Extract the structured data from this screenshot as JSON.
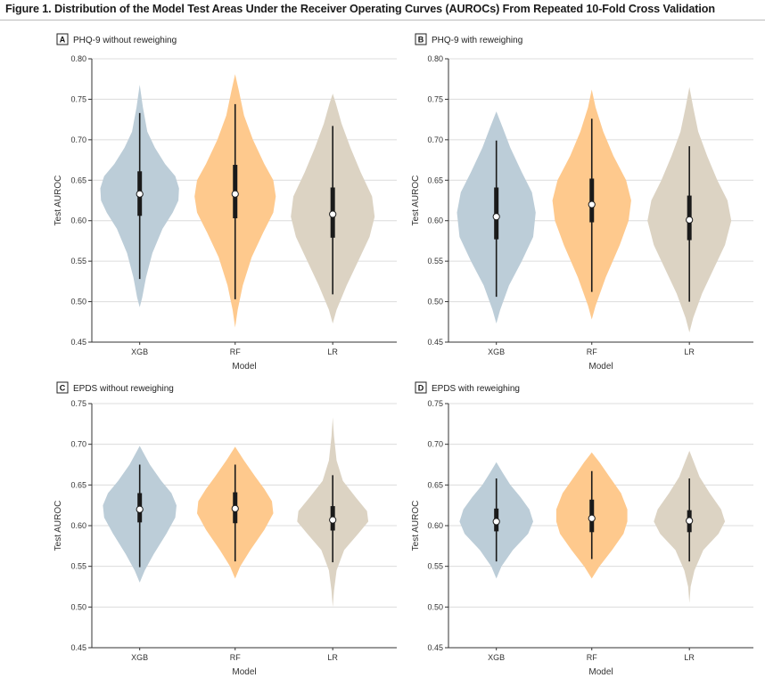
{
  "figure": {
    "title": "Figure 1. Distribution of the Model Test Areas Under the Receiver Operating Curves (AUROCs) From Repeated 10-Fold Cross Validation"
  },
  "colors": {
    "XGB": "#bccdd8",
    "RF": "#fec98d",
    "LR": "#dcd3c3"
  },
  "chart_data": [
    {
      "type": "violin",
      "letter": "A",
      "title": "PHQ-9 without reweighing",
      "xlabel": "Model",
      "ylabel": "Test AUROC",
      "ylim": [
        0.45,
        0.8
      ],
      "yticks": [
        "0.45",
        "0.50",
        "0.55",
        "0.60",
        "0.65",
        "0.70",
        "0.75",
        "0.80"
      ],
      "categories": [
        "XGB",
        "RF",
        "LR"
      ],
      "series": [
        {
          "name": "XGB",
          "median": 0.633,
          "q1": 0.606,
          "q3": 0.661,
          "whisker_low": 0.528,
          "whisker_high": 0.733,
          "density": [
            [
              0.493,
              0.0
            ],
            [
              0.505,
              0.02
            ],
            [
              0.53,
              0.05
            ],
            [
              0.56,
              0.1
            ],
            [
              0.59,
              0.18
            ],
            [
              0.61,
              0.26
            ],
            [
              0.625,
              0.305
            ],
            [
              0.64,
              0.31
            ],
            [
              0.655,
              0.28
            ],
            [
              0.67,
              0.2
            ],
            [
              0.69,
              0.12
            ],
            [
              0.71,
              0.06
            ],
            [
              0.74,
              0.025
            ],
            [
              0.768,
              0.0
            ]
          ]
        },
        {
          "name": "RF",
          "median": 0.633,
          "q1": 0.603,
          "q3": 0.669,
          "whisker_low": 0.503,
          "whisker_high": 0.744,
          "density": [
            [
              0.468,
              0.0
            ],
            [
              0.49,
              0.02
            ],
            [
              0.52,
              0.06
            ],
            [
              0.555,
              0.13
            ],
            [
              0.585,
              0.22
            ],
            [
              0.61,
              0.3
            ],
            [
              0.63,
              0.32
            ],
            [
              0.65,
              0.3
            ],
            [
              0.67,
              0.23
            ],
            [
              0.7,
              0.14
            ],
            [
              0.73,
              0.07
            ],
            [
              0.76,
              0.03
            ],
            [
              0.781,
              0.0
            ]
          ]
        },
        {
          "name": "LR",
          "median": 0.608,
          "q1": 0.579,
          "q3": 0.641,
          "whisker_low": 0.509,
          "whisker_high": 0.717,
          "density": [
            [
              0.473,
              0.0
            ],
            [
              0.49,
              0.03
            ],
            [
              0.52,
              0.11
            ],
            [
              0.55,
              0.2
            ],
            [
              0.58,
              0.29
            ],
            [
              0.605,
              0.33
            ],
            [
              0.63,
              0.31
            ],
            [
              0.66,
              0.22
            ],
            [
              0.69,
              0.14
            ],
            [
              0.72,
              0.07
            ],
            [
              0.745,
              0.025
            ],
            [
              0.757,
              0.0
            ]
          ]
        }
      ]
    },
    {
      "type": "violin",
      "letter": "B",
      "title": "PHQ-9 with reweighing",
      "xlabel": "Model",
      "ylabel": "Test AUROC",
      "ylim": [
        0.45,
        0.8
      ],
      "yticks": [
        "0.45",
        "0.50",
        "0.55",
        "0.60",
        "0.65",
        "0.70",
        "0.75",
        "0.80"
      ],
      "categories": [
        "XGB",
        "RF",
        "LR"
      ],
      "series": [
        {
          "name": "XGB",
          "median": 0.605,
          "q1": 0.577,
          "q3": 0.641,
          "whisker_low": 0.506,
          "whisker_high": 0.699,
          "density": [
            [
              0.473,
              0.0
            ],
            [
              0.49,
              0.03
            ],
            [
              0.52,
              0.1
            ],
            [
              0.55,
              0.2
            ],
            [
              0.58,
              0.29
            ],
            [
              0.61,
              0.31
            ],
            [
              0.635,
              0.28
            ],
            [
              0.66,
              0.2
            ],
            [
              0.69,
              0.11
            ],
            [
              0.715,
              0.05
            ],
            [
              0.735,
              0.0
            ]
          ]
        },
        {
          "name": "RF",
          "median": 0.62,
          "q1": 0.598,
          "q3": 0.652,
          "whisker_low": 0.512,
          "whisker_high": 0.726,
          "density": [
            [
              0.478,
              0.0
            ],
            [
              0.495,
              0.03
            ],
            [
              0.53,
              0.11
            ],
            [
              0.57,
              0.22
            ],
            [
              0.6,
              0.29
            ],
            [
              0.625,
              0.31
            ],
            [
              0.65,
              0.27
            ],
            [
              0.68,
              0.17
            ],
            [
              0.71,
              0.09
            ],
            [
              0.74,
              0.03
            ],
            [
              0.762,
              0.0
            ]
          ]
        },
        {
          "name": "LR",
          "median": 0.601,
          "q1": 0.576,
          "q3": 0.631,
          "whisker_low": 0.5,
          "whisker_high": 0.692,
          "density": [
            [
              0.462,
              0.0
            ],
            [
              0.48,
              0.03
            ],
            [
              0.51,
              0.1
            ],
            [
              0.54,
              0.19
            ],
            [
              0.57,
              0.28
            ],
            [
              0.6,
              0.33
            ],
            [
              0.625,
              0.3
            ],
            [
              0.65,
              0.22
            ],
            [
              0.68,
              0.14
            ],
            [
              0.71,
              0.07
            ],
            [
              0.74,
              0.03
            ],
            [
              0.765,
              0.0
            ]
          ]
        }
      ]
    },
    {
      "type": "violin",
      "letter": "C",
      "title": "EPDS without reweighing",
      "xlabel": "Model",
      "ylabel": "Test AUROC",
      "ylim": [
        0.45,
        0.75
      ],
      "yticks": [
        "0.45",
        "0.50",
        "0.55",
        "0.60",
        "0.65",
        "0.70",
        "0.75"
      ],
      "categories": [
        "XGB",
        "RF",
        "LR"
      ],
      "series": [
        {
          "name": "XGB",
          "median": 0.62,
          "q1": 0.604,
          "q3": 0.64,
          "whisker_low": 0.549,
          "whisker_high": 0.675,
          "density": [
            [
              0.53,
              0.0
            ],
            [
              0.545,
              0.04
            ],
            [
              0.565,
              0.11
            ],
            [
              0.59,
              0.21
            ],
            [
              0.61,
              0.28
            ],
            [
              0.625,
              0.29
            ],
            [
              0.64,
              0.25
            ],
            [
              0.655,
              0.17
            ],
            [
              0.675,
              0.08
            ],
            [
              0.698,
              0.0
            ]
          ]
        },
        {
          "name": "RF",
          "median": 0.621,
          "q1": 0.603,
          "q3": 0.641,
          "whisker_low": 0.556,
          "whisker_high": 0.675,
          "density": [
            [
              0.535,
              0.0
            ],
            [
              0.55,
              0.04
            ],
            [
              0.57,
              0.12
            ],
            [
              0.595,
              0.23
            ],
            [
              0.615,
              0.3
            ],
            [
              0.63,
              0.29
            ],
            [
              0.645,
              0.23
            ],
            [
              0.66,
              0.16
            ],
            [
              0.68,
              0.07
            ],
            [
              0.697,
              0.0
            ]
          ]
        },
        {
          "name": "LR",
          "median": 0.607,
          "q1": 0.594,
          "q3": 0.624,
          "whisker_low": 0.555,
          "whisker_high": 0.662,
          "density": [
            [
              0.5,
              0.0
            ],
            [
              0.52,
              0.01
            ],
            [
              0.545,
              0.03
            ],
            [
              0.57,
              0.09
            ],
            [
              0.59,
              0.2
            ],
            [
              0.605,
              0.28
            ],
            [
              0.618,
              0.27
            ],
            [
              0.635,
              0.18
            ],
            [
              0.655,
              0.08
            ],
            [
              0.68,
              0.03
            ],
            [
              0.71,
              0.01
            ],
            [
              0.733,
              0.0
            ]
          ]
        }
      ]
    },
    {
      "type": "violin",
      "letter": "D",
      "title": "EPDS with reweighing",
      "xlabel": "Model",
      "ylabel": "Test AUROC",
      "ylim": [
        0.45,
        0.75
      ],
      "yticks": [
        "0.45",
        "0.50",
        "0.55",
        "0.60",
        "0.65",
        "0.70",
        "0.75"
      ],
      "categories": [
        "XGB",
        "RF",
        "LR"
      ],
      "series": [
        {
          "name": "XGB",
          "median": 0.605,
          "q1": 0.593,
          "q3": 0.621,
          "whisker_low": 0.556,
          "whisker_high": 0.658,
          "density": [
            [
              0.535,
              0.0
            ],
            [
              0.55,
              0.04
            ],
            [
              0.57,
              0.13
            ],
            [
              0.59,
              0.25
            ],
            [
              0.605,
              0.29
            ],
            [
              0.62,
              0.26
            ],
            [
              0.635,
              0.19
            ],
            [
              0.65,
              0.11
            ],
            [
              0.665,
              0.05
            ],
            [
              0.678,
              0.0
            ]
          ]
        },
        {
          "name": "RF",
          "median": 0.609,
          "q1": 0.592,
          "q3": 0.632,
          "whisker_low": 0.559,
          "whisker_high": 0.667,
          "density": [
            [
              0.535,
              0.0
            ],
            [
              0.55,
              0.06
            ],
            [
              0.57,
              0.16
            ],
            [
              0.59,
              0.25
            ],
            [
              0.605,
              0.28
            ],
            [
              0.62,
              0.28
            ],
            [
              0.64,
              0.23
            ],
            [
              0.66,
              0.14
            ],
            [
              0.678,
              0.06
            ],
            [
              0.69,
              0.0
            ]
          ]
        },
        {
          "name": "LR",
          "median": 0.606,
          "q1": 0.592,
          "q3": 0.619,
          "whisker_low": 0.556,
          "whisker_high": 0.658,
          "density": [
            [
              0.505,
              0.0
            ],
            [
              0.525,
              0.01
            ],
            [
              0.545,
              0.04
            ],
            [
              0.57,
              0.11
            ],
            [
              0.59,
              0.23
            ],
            [
              0.605,
              0.28
            ],
            [
              0.62,
              0.25
            ],
            [
              0.64,
              0.16
            ],
            [
              0.66,
              0.08
            ],
            [
              0.68,
              0.03
            ],
            [
              0.692,
              0.0
            ]
          ]
        }
      ]
    }
  ]
}
